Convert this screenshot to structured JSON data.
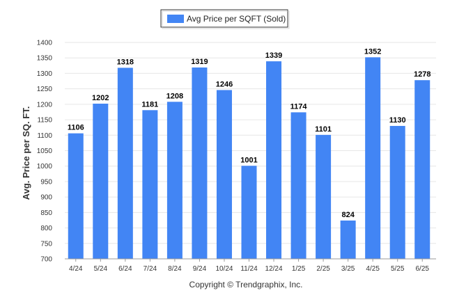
{
  "chart_data": {
    "type": "bar",
    "legend": "Avg Price per SQFT (Sold)",
    "legend_position": "top-center",
    "categories": [
      "4/24",
      "5/24",
      "6/24",
      "7/24",
      "8/24",
      "9/24",
      "10/24",
      "11/24",
      "12/24",
      "1/25",
      "2/25",
      "3/25",
      "4/25",
      "5/25",
      "6/25"
    ],
    "values": [
      1106,
      1202,
      1318,
      1181,
      1208,
      1319,
      1246,
      1001,
      1339,
      1174,
      1101,
      824,
      1352,
      1130,
      1278
    ],
    "ylabel": "Avg. Price per SQ. FT.",
    "ylim": [
      700,
      1400
    ],
    "yticks": [
      700,
      750,
      800,
      850,
      900,
      950,
      1000,
      1050,
      1100,
      1150,
      1200,
      1250,
      1300,
      1350,
      1400
    ],
    "grid": true,
    "bar_color": "#4285f4",
    "footer": "Copyright © Trendgraphix, Inc."
  }
}
